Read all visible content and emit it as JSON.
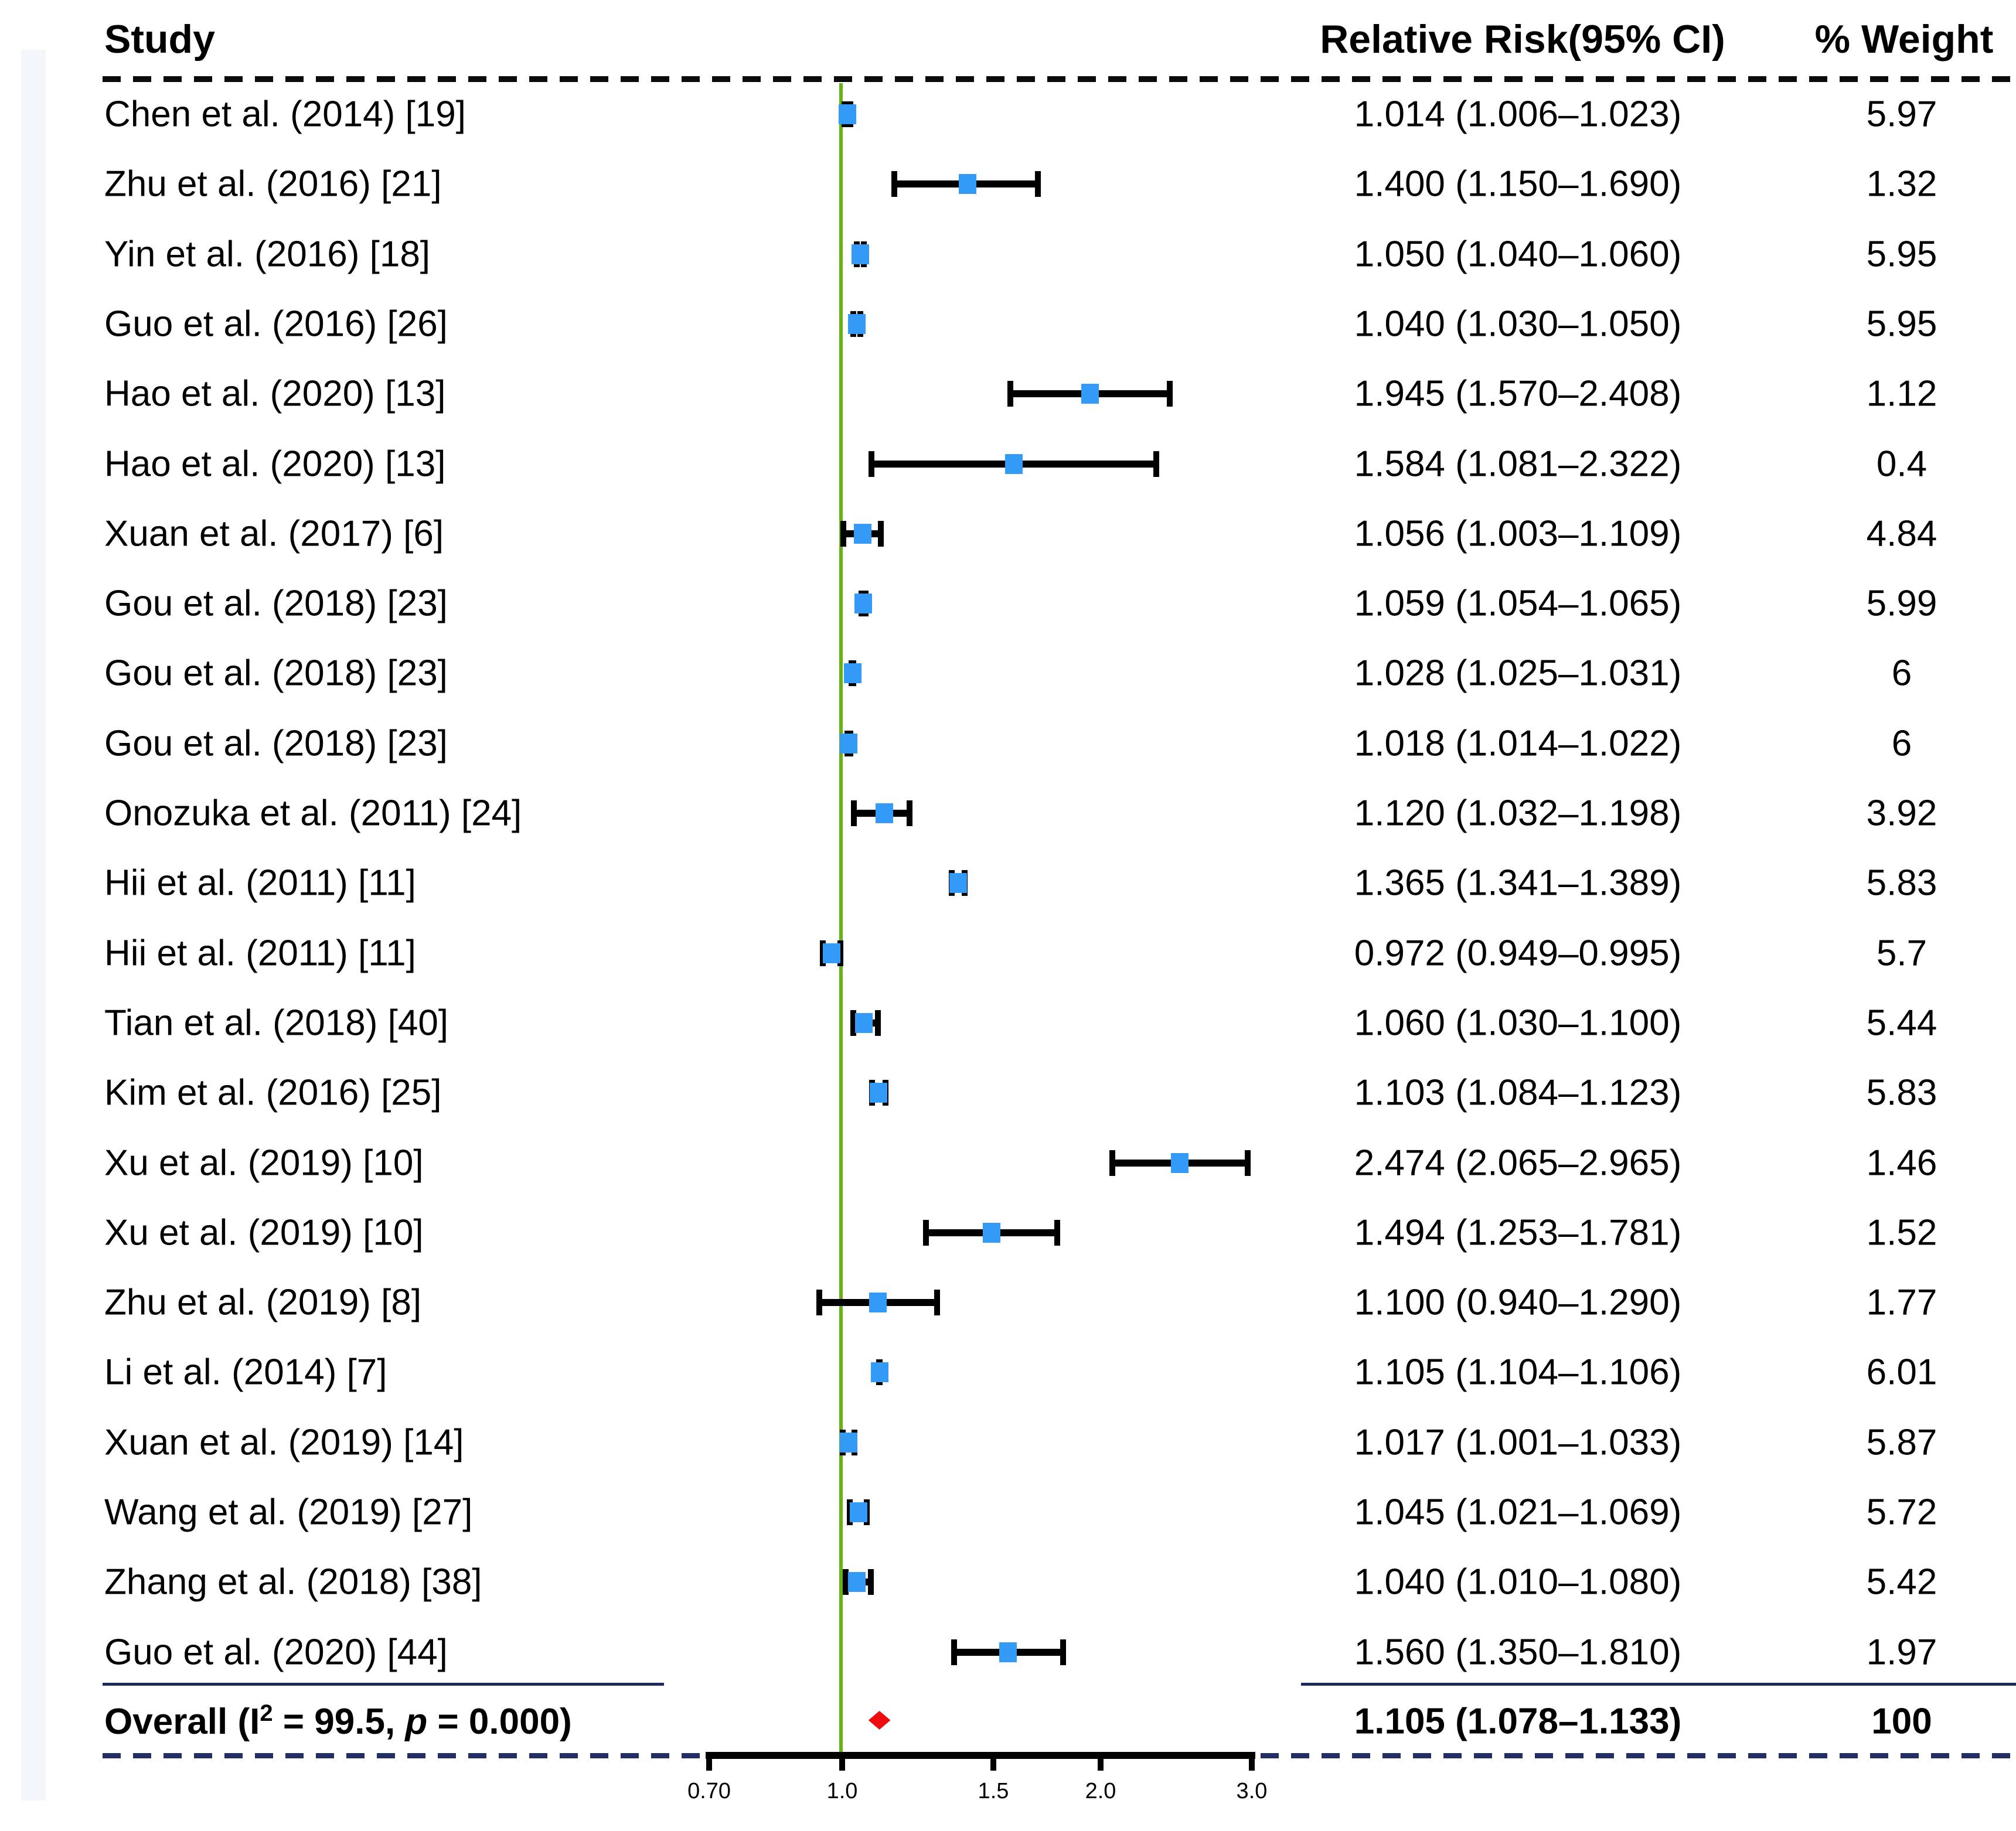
{
  "header": {
    "study": "Study",
    "rr": "Relative Risk(95% CI)",
    "weight": "% Weight"
  },
  "chart_data": {
    "type": "scatter",
    "variant": "forest-plot",
    "x_scale": "log10",
    "x_axis": {
      "ticks": [
        {
          "label": "0.70",
          "value": 0.7
        },
        {
          "label": "1.0",
          "value": 1.0
        },
        {
          "label": "1.5",
          "value": 1.5
        },
        {
          "label": "2.0",
          "value": 2.0
        },
        {
          "label": "3.0",
          "value": 3.0
        }
      ],
      "reference_line_value": 1.0
    },
    "studies": [
      {
        "label": "Chen et al. (2014) [19]",
        "rr": 1.014,
        "lo": 1.006,
        "hi": 1.023,
        "rr_text": "1.014 (1.006–1.023)",
        "weight": "5.97"
      },
      {
        "label": "Zhu et al. (2016) [21]",
        "rr": 1.4,
        "lo": 1.15,
        "hi": 1.69,
        "rr_text": "1.400 (1.150–1.690)",
        "weight": "1.32"
      },
      {
        "label": "Yin et al. (2016) [18]",
        "rr": 1.05,
        "lo": 1.04,
        "hi": 1.06,
        "rr_text": "1.050 (1.040–1.060)",
        "weight": "5.95"
      },
      {
        "label": "Guo et al. (2016) [26]",
        "rr": 1.04,
        "lo": 1.03,
        "hi": 1.05,
        "rr_text": "1.040 (1.030–1.050)",
        "weight": "5.95"
      },
      {
        "label": "Hao et al. (2020) [13]",
        "rr": 1.945,
        "lo": 1.57,
        "hi": 2.408,
        "rr_text": "1.945 (1.570–2.408)",
        "weight": "1.12"
      },
      {
        "label": "Hao et al. (2020) [13]",
        "rr": 1.584,
        "lo": 1.081,
        "hi": 2.322,
        "rr_text": "1.584 (1.081–2.322)",
        "weight": "0.4"
      },
      {
        "label": "Xuan et al. (2017) [6]",
        "rr": 1.056,
        "lo": 1.003,
        "hi": 1.109,
        "rr_text": "1.056 (1.003–1.109)",
        "weight": "4.84"
      },
      {
        "label": "Gou et al. (2018) [23]",
        "rr": 1.059,
        "lo": 1.054,
        "hi": 1.065,
        "rr_text": "1.059 (1.054–1.065)",
        "weight": "5.99"
      },
      {
        "label": "Gou et al. (2018) [23]",
        "rr": 1.028,
        "lo": 1.025,
        "hi": 1.031,
        "rr_text": "1.028 (1.025–1.031)",
        "weight": "6"
      },
      {
        "label": "Gou et al. (2018) [23]",
        "rr": 1.018,
        "lo": 1.014,
        "hi": 1.022,
        "rr_text": "1.018 (1.014–1.022)",
        "weight": "6"
      },
      {
        "label": "Onozuka et al. (2011) [24]",
        "rr": 1.12,
        "lo": 1.032,
        "hi": 1.198,
        "rr_text": "1.120 (1.032–1.198)",
        "weight": "3.92"
      },
      {
        "label": "Hii et al. (2011) [11]",
        "rr": 1.365,
        "lo": 1.341,
        "hi": 1.389,
        "rr_text": "1.365 (1.341–1.389)",
        "weight": "5.83"
      },
      {
        "label": "Hii et al. (2011) [11]",
        "rr": 0.972,
        "lo": 0.949,
        "hi": 0.995,
        "rr_text": "0.972 (0.949–0.995)",
        "weight": "5.7"
      },
      {
        "label": "Tian et al. (2018) [40]",
        "rr": 1.06,
        "lo": 1.03,
        "hi": 1.1,
        "rr_text": "1.060 (1.030–1.100)",
        "weight": "5.44"
      },
      {
        "label": "Kim et al. (2016) [25]",
        "rr": 1.103,
        "lo": 1.084,
        "hi": 1.123,
        "rr_text": "1.103 (1.084–1.123)",
        "weight": "5.83"
      },
      {
        "label": "Xu et al. (2019) [10]",
        "rr": 2.474,
        "lo": 2.065,
        "hi": 2.965,
        "rr_text": "2.474 (2.065–2.965)",
        "weight": "1.46"
      },
      {
        "label": "Xu et al. (2019) [10]",
        "rr": 1.494,
        "lo": 1.253,
        "hi": 1.781,
        "rr_text": "1.494 (1.253–1.781)",
        "weight": "1.52"
      },
      {
        "label": "Zhu et al. (2019) [8]",
        "rr": 1.1,
        "lo": 0.94,
        "hi": 1.29,
        "rr_text": "1.100 (0.940–1.290)",
        "weight": "1.77"
      },
      {
        "label": "Li et al. (2014) [7]",
        "rr": 1.105,
        "lo": 1.104,
        "hi": 1.106,
        "rr_text": "1.105 (1.104–1.106)",
        "weight": "6.01"
      },
      {
        "label": "Xuan et al. (2019) [14]",
        "rr": 1.017,
        "lo": 1.001,
        "hi": 1.033,
        "rr_text": "1.017 (1.001–1.033)",
        "weight": "5.87"
      },
      {
        "label": "Wang et al. (2019) [27]",
        "rr": 1.045,
        "lo": 1.021,
        "hi": 1.069,
        "rr_text": "1.045 (1.021–1.069)",
        "weight": "5.72"
      },
      {
        "label": "Zhang et al. (2018) [38]",
        "rr": 1.04,
        "lo": 1.01,
        "hi": 1.08,
        "rr_text": "1.040 (1.010–1.080)",
        "weight": "5.42"
      },
      {
        "label": "Guo et al. (2020) [44]",
        "rr": 1.56,
        "lo": 1.35,
        "hi": 1.81,
        "rr_text": "1.560 (1.350–1.810)",
        "weight": "1.97"
      }
    ],
    "overall": {
      "label_pre": "Overall (I",
      "label_sup": "2",
      "label_mid": " = 99.5, ",
      "label_p": "p",
      "label_post": " = 0.000)",
      "rr": 1.105,
      "lo": 1.078,
      "hi": 1.133,
      "rr_text": "1.105 (1.078–1.133)",
      "weight": "100",
      "i_squared": "99.5",
      "p_value": "0.000"
    }
  },
  "colors": {
    "square": "#349af8",
    "ci_bar": "#000000",
    "reference_line": "#66b317",
    "diamond": "#ee0d0d",
    "dashed_top": "#0b0b0b",
    "dashed_bottom": "#232e63",
    "separator": "#1a2a5e",
    "left_stripe": "#f2f6fa",
    "text": "#000000"
  }
}
